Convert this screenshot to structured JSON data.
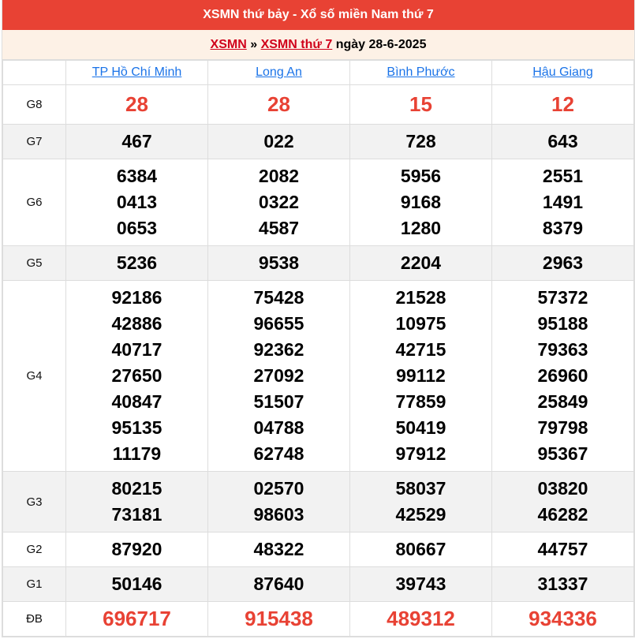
{
  "header": {
    "title": "XSMN thứ bảy - Xổ số miền Nam thứ 7"
  },
  "breadcrumb": {
    "link1": "XSMN",
    "sep": "»",
    "link2": "XSMN thứ 7",
    "date_text": "ngày 28-6-2025"
  },
  "colors": {
    "accent": "#e84234",
    "link": "#1a73e8",
    "breadcrumb_link": "#d0021b"
  },
  "provinces": [
    "TP Hồ Chí Minh",
    "Long An",
    "Bình Phước",
    "Hậu Giang"
  ],
  "prizes": [
    {
      "label": "G8",
      "red": true,
      "gray": false,
      "values": [
        [
          "28"
        ],
        [
          "28"
        ],
        [
          "15"
        ],
        [
          "12"
        ]
      ]
    },
    {
      "label": "G7",
      "red": false,
      "gray": true,
      "values": [
        [
          "467"
        ],
        [
          "022"
        ],
        [
          "728"
        ],
        [
          "643"
        ]
      ]
    },
    {
      "label": "G6",
      "red": false,
      "gray": false,
      "values": [
        [
          "6384",
          "0413",
          "0653"
        ],
        [
          "2082",
          "0322",
          "4587"
        ],
        [
          "5956",
          "9168",
          "1280"
        ],
        [
          "2551",
          "1491",
          "8379"
        ]
      ]
    },
    {
      "label": "G5",
      "red": false,
      "gray": true,
      "values": [
        [
          "5236"
        ],
        [
          "9538"
        ],
        [
          "2204"
        ],
        [
          "2963"
        ]
      ]
    },
    {
      "label": "G4",
      "red": false,
      "gray": false,
      "values": [
        [
          "92186",
          "42886",
          "40717",
          "27650",
          "40847",
          "95135",
          "11179"
        ],
        [
          "75428",
          "96655",
          "92362",
          "27092",
          "51507",
          "04788",
          "62748"
        ],
        [
          "21528",
          "10975",
          "42715",
          "99112",
          "77859",
          "50419",
          "97912"
        ],
        [
          "57372",
          "95188",
          "79363",
          "26960",
          "25849",
          "79798",
          "95367"
        ]
      ]
    },
    {
      "label": "G3",
      "red": false,
      "gray": true,
      "values": [
        [
          "80215",
          "73181"
        ],
        [
          "02570",
          "98603"
        ],
        [
          "58037",
          "42529"
        ],
        [
          "03820",
          "46282"
        ]
      ]
    },
    {
      "label": "G2",
      "red": false,
      "gray": false,
      "values": [
        [
          "87920"
        ],
        [
          "48322"
        ],
        [
          "80667"
        ],
        [
          "44757"
        ]
      ]
    },
    {
      "label": "G1",
      "red": false,
      "gray": true,
      "values": [
        [
          "50146"
        ],
        [
          "87640"
        ],
        [
          "39743"
        ],
        [
          "31337"
        ]
      ]
    },
    {
      "label": "ĐB",
      "red": true,
      "gray": false,
      "values": [
        [
          "696717"
        ],
        [
          "915438"
        ],
        [
          "489312"
        ],
        [
          "934336"
        ]
      ]
    }
  ]
}
